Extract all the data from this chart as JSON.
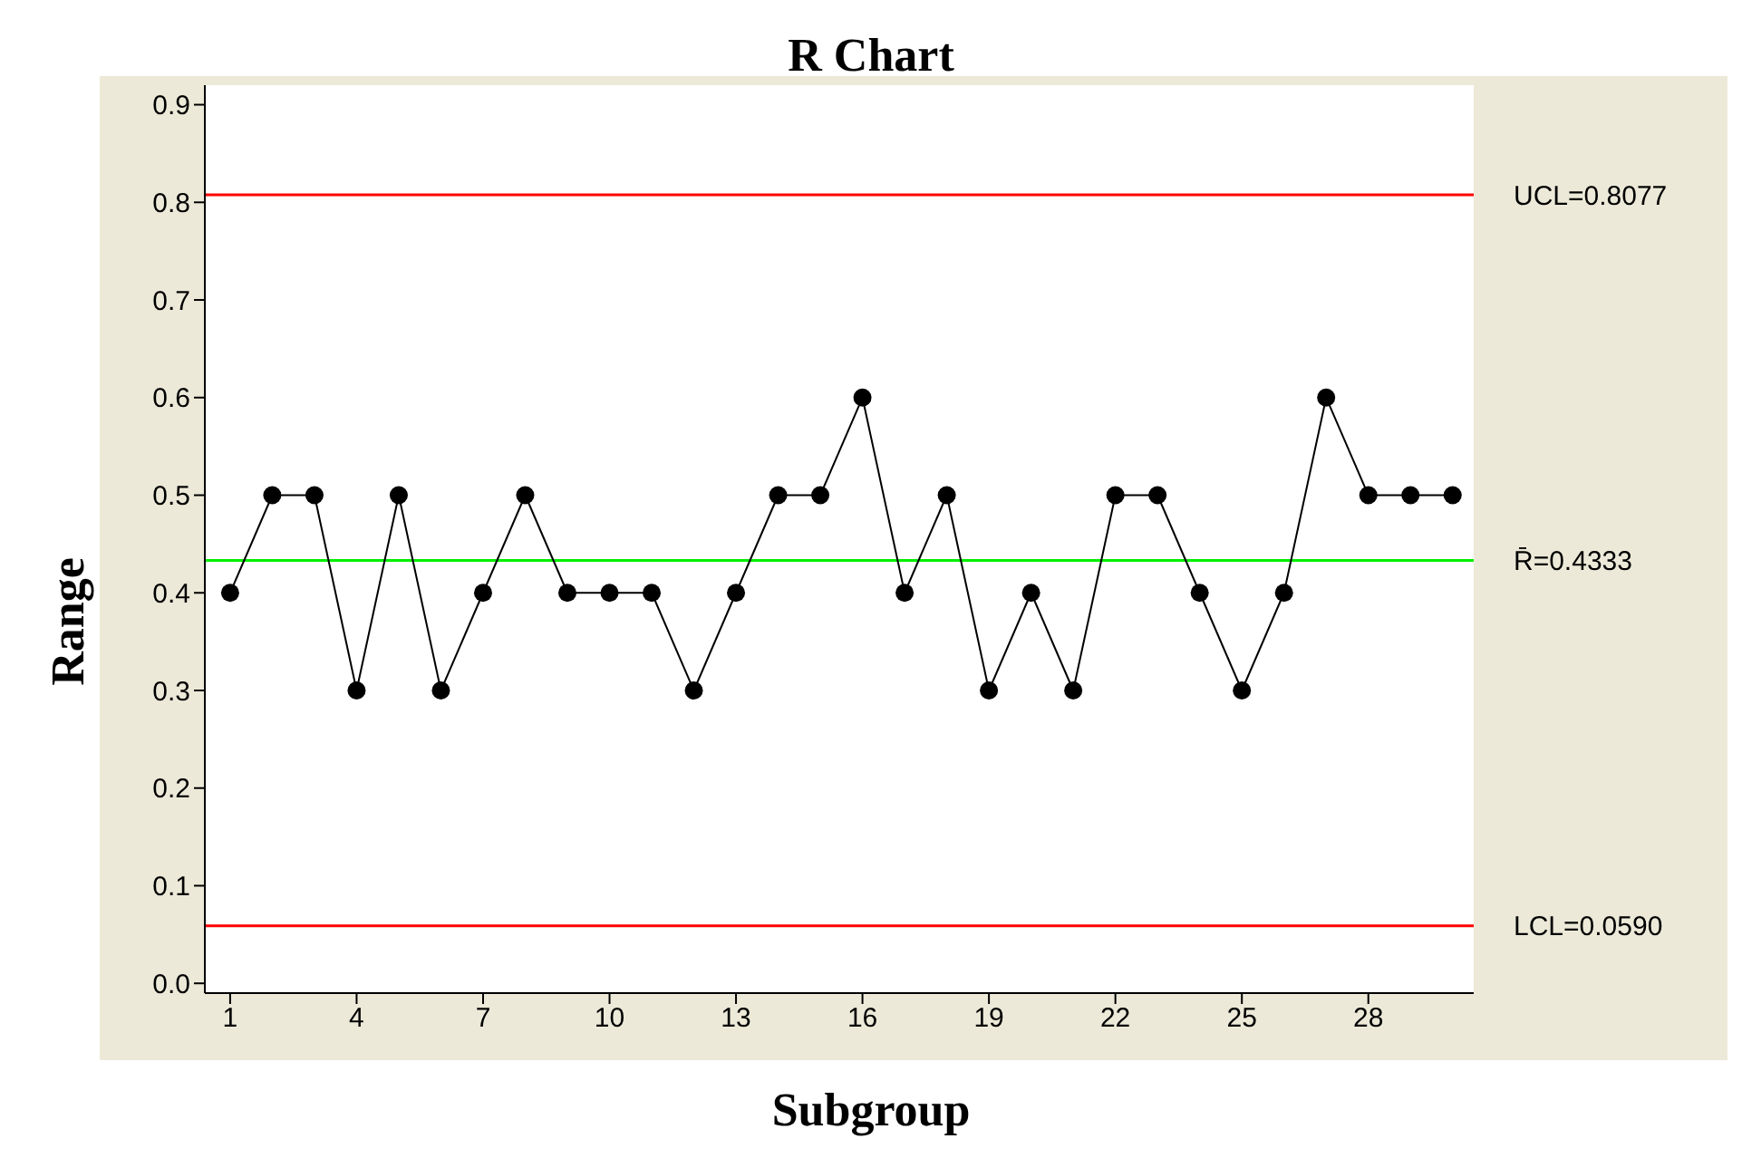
{
  "chart_data": {
    "type": "line",
    "title": "R Chart",
    "xlabel": "Subgroup",
    "ylabel": "Range",
    "x": [
      1,
      2,
      3,
      4,
      5,
      6,
      7,
      8,
      9,
      10,
      11,
      12,
      13,
      14,
      15,
      16,
      17,
      18,
      19,
      20,
      21,
      22,
      23,
      24,
      25,
      26,
      27,
      28,
      29,
      30
    ],
    "series": [
      {
        "color": "#000000",
        "values": [
          0.4,
          0.5,
          0.5,
          0.3,
          0.5,
          0.3,
          0.4,
          0.5,
          0.4,
          0.4,
          0.4,
          0.3,
          0.4,
          0.5,
          0.5,
          0.6,
          0.4,
          0.5,
          0.3,
          0.4,
          0.3,
          0.5,
          0.5,
          0.4,
          0.3,
          0.4,
          0.6,
          0.5,
          0.5,
          0.5
        ]
      }
    ],
    "marker": "circle",
    "line_style": "solid",
    "legend": false,
    "xlim": [
      0.4,
      30.5
    ],
    "xticks": [
      1,
      4,
      7,
      10,
      13,
      16,
      19,
      22,
      25,
      28
    ],
    "ylim": [
      -0.01,
      0.92
    ],
    "yticks": [
      {
        "value": 0,
        "label": "0.0"
      },
      0.1,
      0.2,
      0.3,
      0.4,
      0.5,
      0.6,
      0.7,
      0.8,
      0.9
    ],
    "ref_lines": [
      {
        "axis": "y",
        "value": 0.8077,
        "label": "UCL=0.8077",
        "color": "#ff0000"
      },
      {
        "axis": "y",
        "value": 0.4333,
        "label": "R̄=0.4333",
        "color": "#00ee00"
      },
      {
        "axis": "y",
        "value": 0.059,
        "label": "LCL=0.0590",
        "color": "#ff0000"
      }
    ]
  }
}
